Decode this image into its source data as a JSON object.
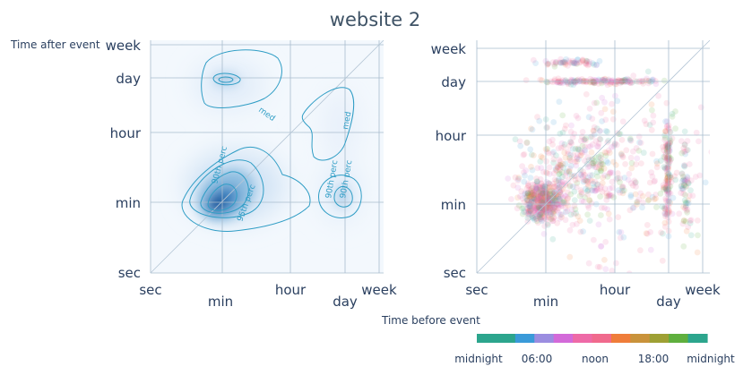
{
  "chart_data": {
    "title": "website 2",
    "ylabel": "Time after event",
    "xlabel": "Time before event",
    "charts": [
      {
        "type": "heatmap",
        "kind": "density-contour",
        "axis_scale": "log",
        "x_ticks": [
          "sec",
          "min",
          "hour",
          "day",
          "week"
        ],
        "y_ticks": [
          "sec",
          "min",
          "hour",
          "day",
          "week"
        ],
        "grid": true,
        "colorscale": "blues",
        "contour_labels": [
          "med",
          "90th perc",
          "95th perc",
          "90th perc",
          "90th perc",
          "med"
        ],
        "density_peaks": [
          {
            "x": "min",
            "y": "min",
            "strength": 1.0
          },
          {
            "x": "day",
            "y": "min",
            "strength": 0.35
          },
          {
            "x": "min",
            "y": "day",
            "strength": 0.4
          },
          {
            "x": "day",
            "y": "hour",
            "strength": 0.15
          }
        ]
      },
      {
        "type": "scatter",
        "axis_scale": "log",
        "x_ticks": [
          "sec",
          "min",
          "hour",
          "day",
          "week"
        ],
        "y_ticks": [
          "sec",
          "min",
          "hour",
          "day",
          "week"
        ],
        "grid": true,
        "marker_opacity": 0.15,
        "color_by": "time of day"
      }
    ],
    "colorbar": {
      "labels": [
        "midnight",
        "06:00",
        "noon",
        "18:00",
        "midnight"
      ],
      "colors": [
        "#2ca58d",
        "#2ca58d",
        "#3a9ad9",
        "#9b8de0",
        "#d36ad9",
        "#ee6aa7",
        "#f06a8d",
        "#ef7d3a",
        "#c9933b",
        "#9ea034",
        "#5faf3e",
        "#2ca58d"
      ]
    }
  }
}
